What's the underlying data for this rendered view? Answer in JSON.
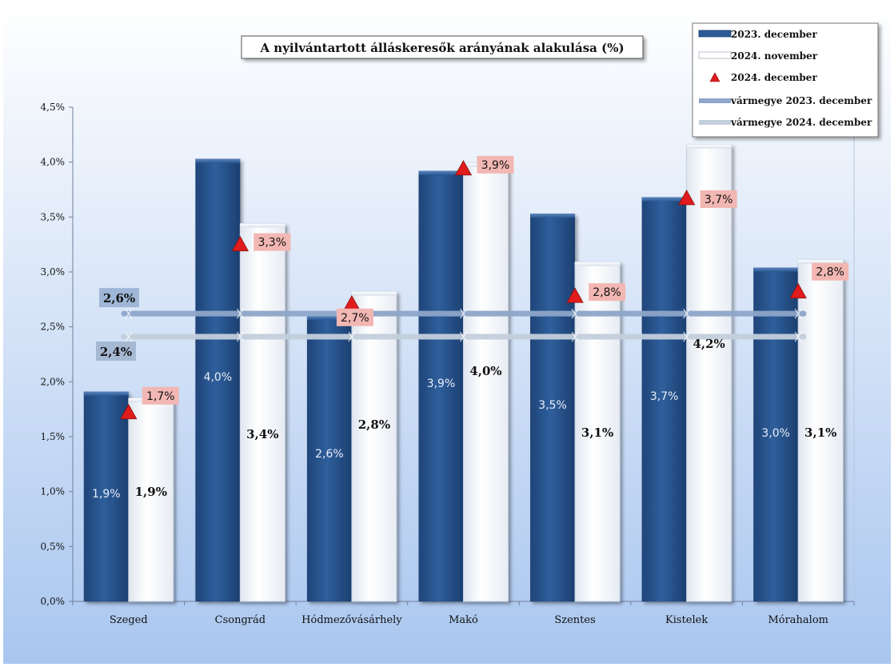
{
  "chart_data": {
    "type": "bar",
    "title": "A nyilvántartott álláskeresők arányának alakulása (%)",
    "categories": [
      "Szeged",
      "Csongrád",
      "Hódmezővásárhely",
      "Makó",
      "Szentes",
      "Kistelek",
      "Mórahalom"
    ],
    "ylim": [
      0,
      4.5
    ],
    "yticks": [
      "0,0%",
      "0,5%",
      "1,0%",
      "1,5%",
      "2,0%",
      "2,5%",
      "3,0%",
      "3,5%",
      "4,0%",
      "4,5%"
    ],
    "series": [
      {
        "name": "2023. december",
        "kind": "bar",
        "color": "#2b5a96",
        "values": [
          1.91,
          4.03,
          2.6,
          3.92,
          3.53,
          3.68,
          3.04
        ],
        "labels": [
          "1,9%",
          "4,0%",
          "2,6%",
          "3,9%",
          "3,5%",
          "3,7%",
          "3,0%"
        ]
      },
      {
        "name": "2024. november",
        "kind": "bar",
        "color": "#ffffff",
        "values": [
          1.85,
          3.44,
          2.82,
          3.99,
          3.09,
          4.16,
          3.11
        ],
        "labels": [
          "1,9%",
          "3,4%",
          "2,8%",
          "4,0%",
          "3,1%",
          "4,2%",
          "3,1%"
        ]
      },
      {
        "name": "2024. december",
        "kind": "marker",
        "color": "#e01c1c",
        "values": [
          1.72,
          3.25,
          2.71,
          3.94,
          2.78,
          3.67,
          2.82
        ],
        "labels": [
          "1,7%",
          "3,3%",
          "2,7%",
          "3,9%",
          "2,8%",
          "3,7%",
          "2,8%"
        ]
      },
      {
        "name": "vármegye 2023. december",
        "kind": "line",
        "color": "#8ea6c9",
        "value": 2.62,
        "label": "2,6%"
      },
      {
        "name": "vármegye 2024. december",
        "kind": "line",
        "color": "#c4cfdd",
        "value": 2.41,
        "label": "2,4%"
      }
    ],
    "legend_position": "top-right",
    "grid": false,
    "background": [
      "#ffffff",
      "#a9c6ef"
    ]
  }
}
